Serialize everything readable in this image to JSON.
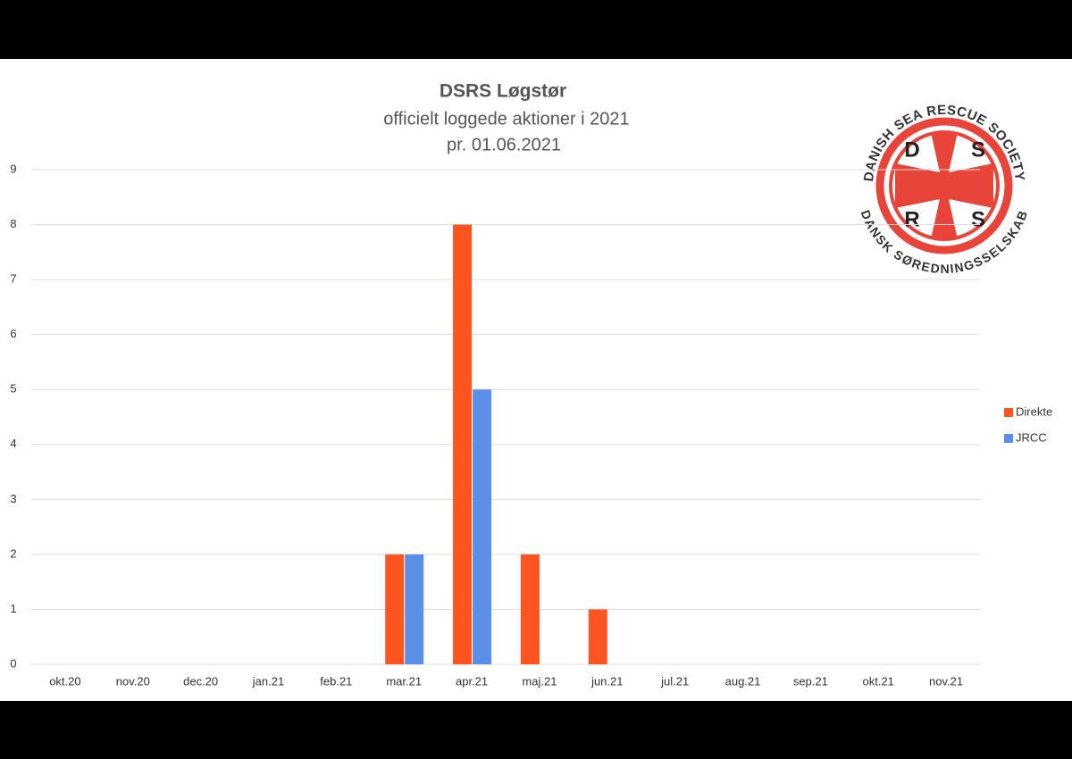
{
  "chart_data": {
    "type": "bar",
    "title": "DSRS Løgstør",
    "subtitle": [
      "officielt loggede aktioner i 2021",
      "pr. 01.06.2021"
    ],
    "categories": [
      "okt.20",
      "nov.20",
      "dec.20",
      "jan.21",
      "feb.21",
      "mar.21",
      "apr.21",
      "maj.21",
      "jun.21",
      "jul.21",
      "aug.21",
      "sep.21",
      "okt.21",
      "nov.21"
    ],
    "series": [
      {
        "name": "Direkte",
        "color": "#fe5420",
        "values": [
          0,
          0,
          0,
          0,
          0,
          2,
          8,
          2,
          1,
          0,
          0,
          0,
          0,
          0
        ]
      },
      {
        "name": "JRCC",
        "color": "#5b8ee6",
        "values": [
          0,
          0,
          0,
          0,
          0,
          2,
          5,
          0,
          0,
          0,
          0,
          0,
          0,
          0
        ]
      }
    ],
    "ylim": [
      0,
      9
    ],
    "yticks": [
      0,
      1,
      2,
      3,
      4,
      5,
      6,
      7,
      8,
      9
    ],
    "grid": true,
    "legend": "right"
  },
  "logo": {
    "top_text": "DANISH SEA RESCUE SOCIETY",
    "bottom_text": "DANSK SØREDNINGSSELSKAB",
    "letters": [
      "D",
      "S",
      "R",
      "S"
    ]
  }
}
